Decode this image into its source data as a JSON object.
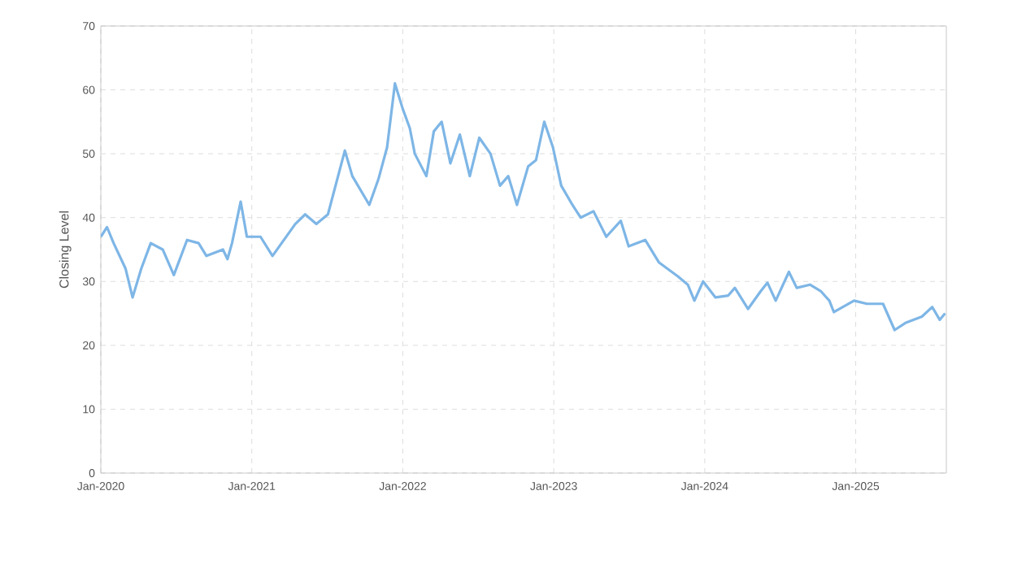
{
  "chart_data": {
    "type": "line",
    "ylabel": "Closing Level",
    "color": "#7eb6e6",
    "grid": true,
    "line_style": "solid",
    "marker": "none",
    "xlim": [
      "2020-01-01",
      "2025-08-08"
    ],
    "ylim": [
      0,
      70
    ],
    "yticks": [
      0,
      10,
      20,
      30,
      40,
      50,
      60,
      70
    ],
    "xticks": [
      {
        "value": "2020-01",
        "label": "Jan-2020"
      },
      {
        "value": "2021-01",
        "label": "Jan-2021"
      },
      {
        "value": "2022-01",
        "label": "Jan-2022"
      },
      {
        "value": "2023-01",
        "label": "Jan-2023"
      },
      {
        "value": "2024-01",
        "label": "Jan-2024"
      },
      {
        "value": "2025-01",
        "label": "Jan-2025"
      }
    ],
    "x": [
      "2020-01-01",
      "2020-01-16",
      "2020-02-01",
      "2020-03-01",
      "2020-03-18",
      "2020-04-08",
      "2020-05-01",
      "2020-05-30",
      "2020-06-26",
      "2020-07-28",
      "2020-08-25",
      "2020-09-13",
      "2020-10-23",
      "2020-11-03",
      "2020-11-14",
      "2020-12-05",
      "2020-12-20",
      "2021-01-22",
      "2021-02-20",
      "2021-04-16",
      "2021-05-10",
      "2021-06-06",
      "2021-07-04",
      "2021-08-14",
      "2021-09-01",
      "2021-10-12",
      "2021-11-03",
      "2021-11-24",
      "2021-12-13",
      "2022-01-01",
      "2022-01-18",
      "2022-01-30",
      "2022-02-27",
      "2022-03-17",
      "2022-04-05",
      "2022-04-26",
      "2022-05-19",
      "2022-06-12",
      "2022-07-05",
      "2022-08-01",
      "2022-08-24",
      "2022-09-13",
      "2022-10-04",
      "2022-10-31",
      "2022-11-19",
      "2022-12-09",
      "2022-12-30",
      "2023-01-19",
      "2023-02-15",
      "2023-03-07",
      "2023-04-07",
      "2023-05-08",
      "2023-06-12",
      "2023-07-01",
      "2023-08-10",
      "2023-09-12",
      "2023-10-28",
      "2023-11-21",
      "2023-12-07",
      "2023-12-28",
      "2024-01-27",
      "2024-02-27",
      "2024-03-14",
      "2024-04-15",
      "2024-05-16",
      "2024-06-01",
      "2024-06-21",
      "2024-07-23",
      "2024-08-11",
      "2024-09-12",
      "2024-10-08",
      "2024-10-29",
      "2024-11-09",
      "2024-12-28",
      "2025-01-28",
      "2025-03-08",
      "2025-04-05",
      "2025-05-01",
      "2025-06-10",
      "2025-07-05",
      "2025-07-23",
      "2025-08-05"
    ],
    "values": [
      37,
      38.5,
      36,
      32,
      27.5,
      32,
      36,
      35,
      31,
      36.5,
      36,
      34,
      35,
      33.5,
      36,
      42.5,
      37,
      37,
      34,
      39,
      40.5,
      39,
      40.5,
      50.5,
      46.5,
      42,
      46,
      51,
      61,
      57,
      54,
      50,
      46.5,
      53.5,
      55,
      48.5,
      53,
      46.5,
      52.5,
      50,
      45,
      46.5,
      42,
      48,
      49,
      55,
      51,
      45,
      42,
      40,
      41,
      37,
      39.5,
      35.5,
      36.5,
      33,
      30.8,
      29.5,
      27,
      30,
      27.5,
      27.8,
      29,
      25.7,
      28.5,
      29.8,
      27,
      31.5,
      29,
      29.5,
      28.5,
      27,
      25.2,
      27,
      26.5,
      26.5,
      22.4,
      23.5,
      24.5,
      26,
      24,
      25
    ]
  }
}
